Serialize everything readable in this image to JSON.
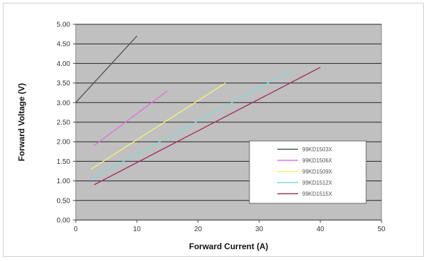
{
  "chart_data": {
    "type": "line",
    "title": "",
    "xlabel": "Forward Current (A)",
    "ylabel": "Forward Voltage (V)",
    "xlim": [
      0,
      50
    ],
    "ylim": [
      0,
      5
    ],
    "x_ticks": [
      "0",
      "10",
      "20",
      "30",
      "40",
      "50"
    ],
    "y_ticks": [
      "0.00",
      "0.50",
      "1.00",
      "1.50",
      "2.00",
      "2.50",
      "3.00",
      "3.50",
      "4.00",
      "4.50",
      "5.00"
    ],
    "grid": true,
    "plot_background": "#c0c0c0",
    "legend_position": "bottom-right",
    "series": [
      {
        "name": "99KD1503X",
        "color": "#555555",
        "x": [
          0,
          10
        ],
        "y": [
          3.0,
          4.7
        ]
      },
      {
        "name": "99KD1506X",
        "color": "#e070e0",
        "x": [
          3,
          15
        ],
        "y": [
          1.9,
          3.3
        ]
      },
      {
        "name": "99KD1509X",
        "color": "#f2f27a",
        "x": [
          2.5,
          24.5
        ],
        "y": [
          1.3,
          3.5
        ]
      },
      {
        "name": "99KD1512X",
        "color": "#7fd8d8",
        "x": [
          2.5,
          35
        ],
        "y": [
          1.05,
          3.8
        ]
      },
      {
        "name": "99KD1515X",
        "color": "#a03060",
        "x": [
          3,
          40
        ],
        "y": [
          0.9,
          3.9
        ]
      }
    ]
  }
}
